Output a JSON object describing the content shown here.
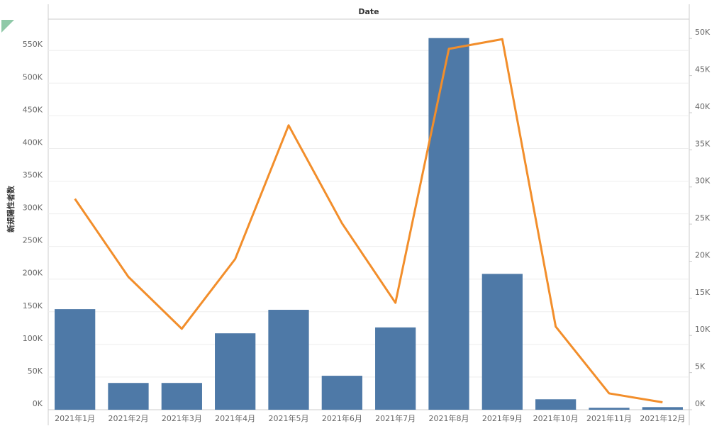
{
  "chart_data": {
    "type": "bar-line",
    "header": "Date",
    "y_label": "新規陽性者数",
    "categories": [
      "2021年1月",
      "2021年2月",
      "2021年3月",
      "2021年4月",
      "2021年5月",
      "2021年6月",
      "2021年7月",
      "2021年8月",
      "2021年9月",
      "2021年10月",
      "2021年11月",
      "2021年12月"
    ],
    "series": [
      {
        "kind": "bar",
        "color": "#4e79a7",
        "values": [
          154000,
          41000,
          41000,
          117000,
          153000,
          52000,
          126000,
          569000,
          208000,
          16000,
          3000,
          4000
        ]
      },
      {
        "kind": "line",
        "axis": "y2",
        "color": "#f28e2b",
        "values": [
          28400,
          17900,
          10900,
          20300,
          38300,
          25100,
          14400,
          48600,
          49900,
          11200,
          2200,
          1000
        ]
      }
    ],
    "ylim": [
      0,
      598000
    ],
    "yticks": [
      {
        "value": 0,
        "label": "0K"
      },
      {
        "value": 50000,
        "label": "50K"
      },
      {
        "value": 100000,
        "label": "100K"
      },
      {
        "value": 150000,
        "label": "150K"
      },
      {
        "value": 200000,
        "label": "200K"
      },
      {
        "value": 250000,
        "label": "250K"
      },
      {
        "value": 300000,
        "label": "300K"
      },
      {
        "value": 350000,
        "label": "350K"
      },
      {
        "value": 400000,
        "label": "400K"
      },
      {
        "value": 450000,
        "label": "450K"
      },
      {
        "value": 500000,
        "label": "500K"
      },
      {
        "value": 550000,
        "label": "550K"
      }
    ],
    "y2lim": [
      0,
      52600
    ],
    "y2ticks": [
      {
        "value": 0,
        "label": "0K"
      },
      {
        "value": 5000,
        "label": "5K"
      },
      {
        "value": 10000,
        "label": "10K"
      },
      {
        "value": 15000,
        "label": "15K"
      },
      {
        "value": 20000,
        "label": "20K"
      },
      {
        "value": 25000,
        "label": "25K"
      },
      {
        "value": 30000,
        "label": "30K"
      },
      {
        "value": 35000,
        "label": "35K"
      },
      {
        "value": 40000,
        "label": "40K"
      },
      {
        "value": 45000,
        "label": "45K"
      },
      {
        "value": 50000,
        "label": "50K"
      }
    ],
    "grid": true
  }
}
